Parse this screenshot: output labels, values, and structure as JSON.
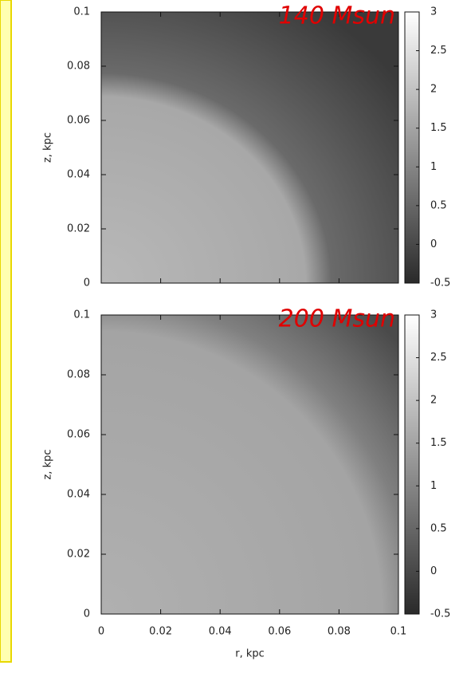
{
  "chart_data": [
    {
      "type": "heatmap",
      "annotation": "140 Msun",
      "ylabel": "z, kpc",
      "xlim": [
        0,
        0.1
      ],
      "ylim": [
        0,
        0.1
      ],
      "yticks": [
        0,
        0.02,
        0.04,
        0.06,
        0.08,
        0.1
      ],
      "clim": [
        -0.5,
        3
      ],
      "cticks": [
        -0.5,
        0,
        0.5,
        1,
        1.5,
        2,
        2.5,
        3
      ]
    },
    {
      "type": "heatmap",
      "annotation": "200 Msun",
      "ylabel": "z, kpc",
      "xlabel": "r, kpc",
      "xlim": [
        0,
        0.1
      ],
      "ylim": [
        0,
        0.1
      ],
      "xticks": [
        0,
        0.02,
        0.04,
        0.06,
        0.08,
        0.1
      ],
      "yticks": [
        0,
        0.02,
        0.04,
        0.06,
        0.08,
        0.1
      ],
      "clim": [
        -0.5,
        3
      ],
      "cticks": [
        -0.5,
        0,
        0.5,
        1,
        1.5,
        2,
        2.5,
        3
      ]
    }
  ]
}
